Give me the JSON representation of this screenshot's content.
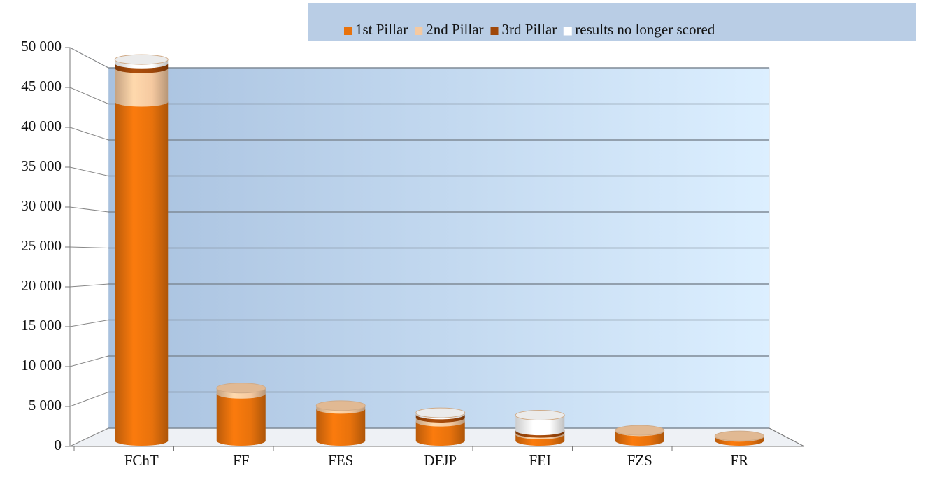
{
  "chart_data": {
    "type": "bar3d_stacked",
    "categories": [
      "FChT",
      "FF",
      "FES",
      "DFJP",
      "FEI",
      "FZS",
      "FR"
    ],
    "series": [
      {
        "name": "1st Pillar",
        "color": "#e8720c",
        "values": [
          42500,
          5900,
          4000,
          2400,
          800,
          1200,
          500
        ]
      },
      {
        "name": "2nd Pillar",
        "color": "#f5c9a0",
        "values": [
          4200,
          700,
          400,
          500,
          200,
          100,
          100
        ]
      },
      {
        "name": "3rd Pillar",
        "color": "#a0480a",
        "values": [
          600,
          0,
          0,
          400,
          300,
          0,
          0
        ]
      },
      {
        "name": "results no longer scored",
        "color": "#ffffff",
        "values": [
          500,
          0,
          0,
          200,
          1900,
          0,
          0
        ]
      }
    ],
    "ylim": [
      0,
      50000
    ],
    "yticks": [
      0,
      {
        "value": 5000,
        "label": "5 000"
      },
      {
        "value": 10000,
        "label": "10 000"
      },
      {
        "value": 15000,
        "label": "15 000"
      },
      {
        "value": 20000,
        "label": "20 000"
      },
      {
        "value": 25000,
        "label": "25 000"
      },
      {
        "value": 30000,
        "label": "30 000"
      },
      {
        "value": 35000,
        "label": "35 000"
      },
      {
        "value": 40000,
        "label": "40 000"
      },
      {
        "value": 45000,
        "label": "45 000"
      },
      {
        "value": 50000,
        "label": "50 000"
      }
    ],
    "grid": true,
    "legend": "top"
  }
}
